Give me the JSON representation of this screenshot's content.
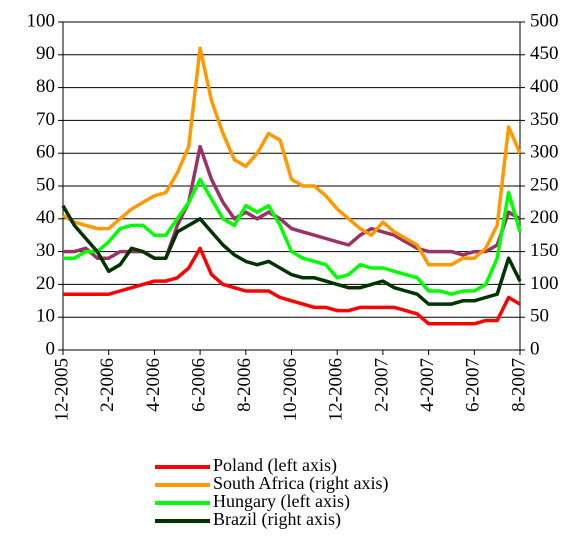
{
  "chart_data": {
    "type": "line",
    "categories": [
      "12-2005",
      null,
      null,
      null,
      "2-2006",
      null,
      null,
      null,
      "4-2006",
      null,
      null,
      null,
      "6-2006",
      null,
      null,
      null,
      "8-2006",
      null,
      null,
      null,
      "10-2006",
      null,
      null,
      null,
      "12-2006",
      null,
      null,
      null,
      "2-2007",
      null,
      null,
      null,
      "4-2007",
      null,
      null,
      null,
      "6-2007",
      null,
      null,
      null,
      "8-2007"
    ],
    "ylim": [
      0,
      100
    ],
    "yticks": [
      0,
      10,
      20,
      30,
      40,
      50,
      60,
      70,
      80,
      90,
      100
    ],
    "y2lim": [
      0,
      500
    ],
    "y2ticks": [
      0,
      50,
      100,
      150,
      200,
      250,
      300,
      350,
      400,
      450,
      500
    ],
    "grid": true,
    "legend": "bottom",
    "series": [
      {
        "color": "#993366",
        "values": [
          30,
          30,
          31,
          28,
          28,
          30,
          30,
          30,
          28,
          28,
          38,
          45,
          62,
          52,
          45,
          40,
          42,
          40,
          42,
          40,
          37,
          36,
          35,
          34,
          33,
          32,
          35,
          37,
          36,
          35,
          33,
          31,
          30,
          30,
          30,
          29,
          30,
          30,
          32,
          42,
          40
        ]
      },
      {
        "name": "Poland (left axis)",
        "color": "#ff0000",
        "values": [
          17,
          17,
          17,
          17,
          17,
          18,
          19,
          20,
          21,
          21,
          22,
          25,
          31,
          23,
          20,
          19,
          18,
          18,
          18,
          16,
          15,
          14,
          13,
          13,
          12,
          12,
          13,
          13,
          13,
          13,
          12,
          11,
          8,
          8,
          8,
          8,
          8,
          9,
          9,
          16,
          14
        ]
      },
      {
        "name": "South Africa (right axis)",
        "color": "#ff9900",
        "axis": "y2",
        "values": [
          205,
          195,
          190,
          185,
          185,
          200,
          215,
          225,
          235,
          240,
          270,
          310,
          460,
          380,
          330,
          290,
          280,
          300,
          330,
          320,
          260,
          250,
          250,
          235,
          215,
          200,
          185,
          175,
          195,
          180,
          170,
          160,
          130,
          130,
          130,
          140,
          140,
          155,
          190,
          340,
          300
        ]
      },
      {
        "name": "Hungary (left axis)",
        "color": "#00ff00",
        "values": [
          28,
          28,
          30,
          30,
          33,
          37,
          38,
          38,
          35,
          35,
          40,
          45,
          52,
          46,
          40,
          38,
          44,
          42,
          44,
          38,
          30,
          28,
          27,
          26,
          22,
          23,
          26,
          25,
          25,
          24,
          23,
          22,
          18,
          18,
          17,
          18,
          18,
          20,
          28,
          48,
          36
        ]
      },
      {
        "name": "Brazil (right axis)",
        "color": "#003300",
        "axis": "y2",
        "values": [
          220,
          190,
          170,
          150,
          120,
          130,
          155,
          150,
          140,
          140,
          180,
          190,
          200,
          180,
          160,
          145,
          135,
          130,
          135,
          125,
          115,
          110,
          110,
          105,
          100,
          95,
          95,
          100,
          105,
          95,
          90,
          85,
          70,
          70,
          70,
          75,
          75,
          80,
          85,
          140,
          105
        ]
      }
    ]
  }
}
